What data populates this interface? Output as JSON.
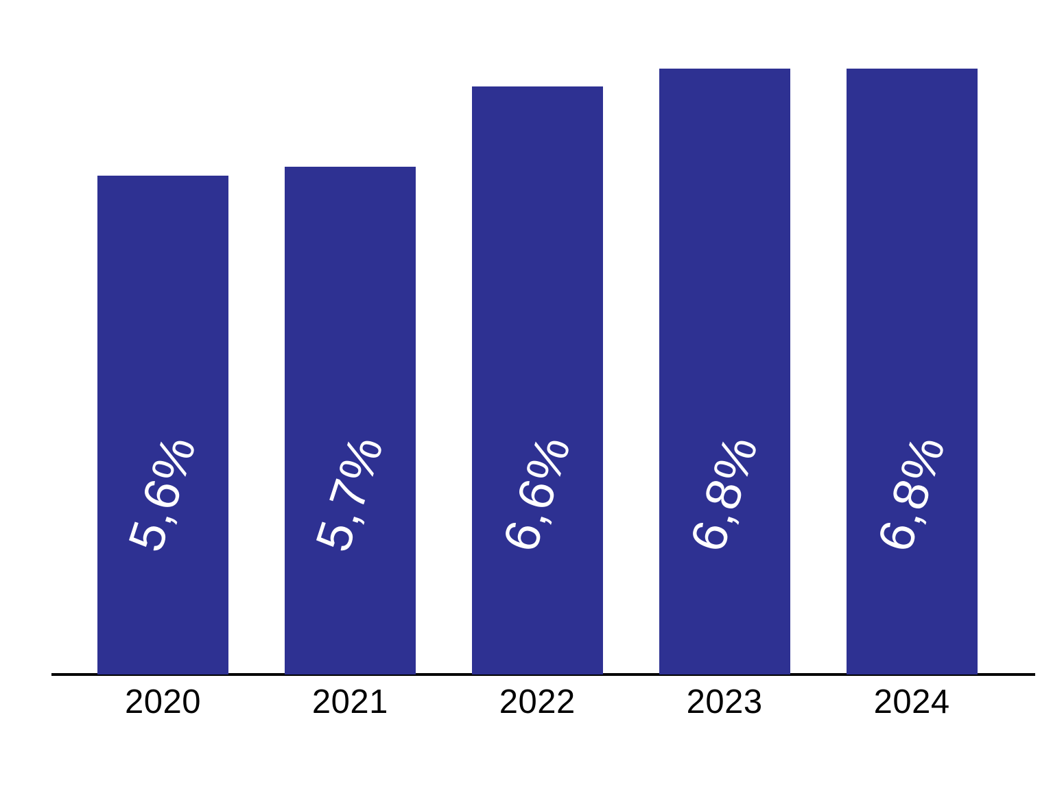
{
  "chart_data": {
    "type": "bar",
    "title": "",
    "xlabel": "",
    "ylabel": "",
    "categories": [
      "2020",
      "2021",
      "2022",
      "2023",
      "2024"
    ],
    "values": [
      5.6,
      5.7,
      6.6,
      6.8,
      6.8
    ],
    "bar_labels": [
      "5,6%",
      "5,7%",
      "6,6%",
      "6,8%",
      "6,8%"
    ],
    "value_format": "percent-comma-decimal",
    "ylim": [
      0,
      7.6
    ],
    "grid": false,
    "legend_position": "none",
    "y_axis_shown": false,
    "bar_label_rotation_deg": -72,
    "colors": {
      "bar": "#2E3192",
      "bar_label_text": "#FFFFFF",
      "axis": "#000000",
      "category_label_text": "#000000",
      "background": "#FFFFFF"
    }
  }
}
